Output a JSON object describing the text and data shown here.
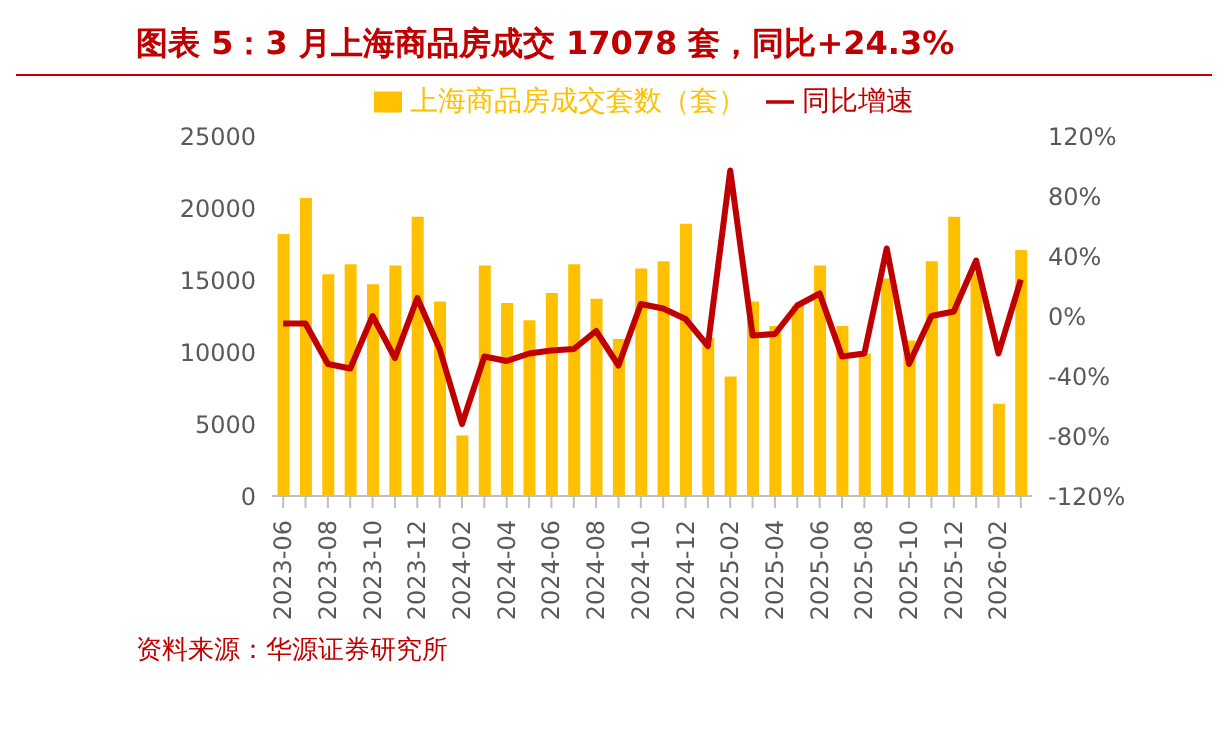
{
  "chart_data": {
    "type": "bar",
    "title": "图表 5：3 月上海商品房成交 17078 套，同比+24.3%",
    "categories": [
      "2023-06",
      null,
      "2023-08",
      null,
      "2023-10",
      null,
      "2023-12",
      null,
      "2024-02",
      null,
      "2024-04",
      null,
      "2024-06",
      null,
      "2024-08",
      null,
      "2024-10",
      null,
      "2024-12",
      null,
      "2025-02",
      null,
      "2025-04",
      null,
      "2025-06",
      null,
      "2025-08",
      null,
      "2025-10",
      null,
      "2025-12",
      null,
      "2026-02",
      null
    ],
    "series": [
      {
        "name": "上海商品房成交套数（套）",
        "color": "#ffc000",
        "values": [
          18200,
          20700,
          15400,
          16100,
          14700,
          16000,
          19400,
          13500,
          4200,
          16000,
          13400,
          12200,
          14100,
          16100,
          13700,
          10900,
          15800,
          16300,
          18900,
          11000,
          8300,
          13500,
          11800,
          13200,
          16000,
          11800,
          9900,
          15100,
          10800,
          16300,
          19400,
          15500,
          6400,
          17078
        ]
      },
      {
        "name": "同比增速",
        "type": "line",
        "axis": "y2",
        "color": "#c00000",
        "values": [
          -5,
          -5,
          -32,
          -35,
          0,
          -28,
          12,
          -22,
          -72,
          -27,
          -30,
          -25,
          -23,
          -22,
          -10,
          -33,
          8,
          5,
          -2,
          -20,
          97,
          -13,
          -12,
          7,
          15,
          -27,
          -25,
          45,
          -32,
          0,
          3,
          37,
          -25,
          24.3
        ]
      }
    ],
    "ylim": [
      0,
      25000
    ],
    "yticks": [
      0,
      5000,
      10000,
      15000,
      20000,
      25000
    ],
    "y2lim": [
      -120,
      120
    ],
    "y2ticks": [
      {
        "value": -120,
        "label": "-120%"
      },
      {
        "value": -80,
        "label": "-80%"
      },
      {
        "value": -40,
        "label": "-40%"
      },
      {
        "value": 0,
        "label": "0%"
      },
      {
        "value": 40,
        "label": "40%"
      },
      {
        "value": 80,
        "label": "80%"
      },
      {
        "value": 120,
        "label": "120%"
      }
    ],
    "legend": "top",
    "grid": false,
    "marker": "none",
    "annotations": [
      "资料来源：华源证券研究所"
    ]
  }
}
